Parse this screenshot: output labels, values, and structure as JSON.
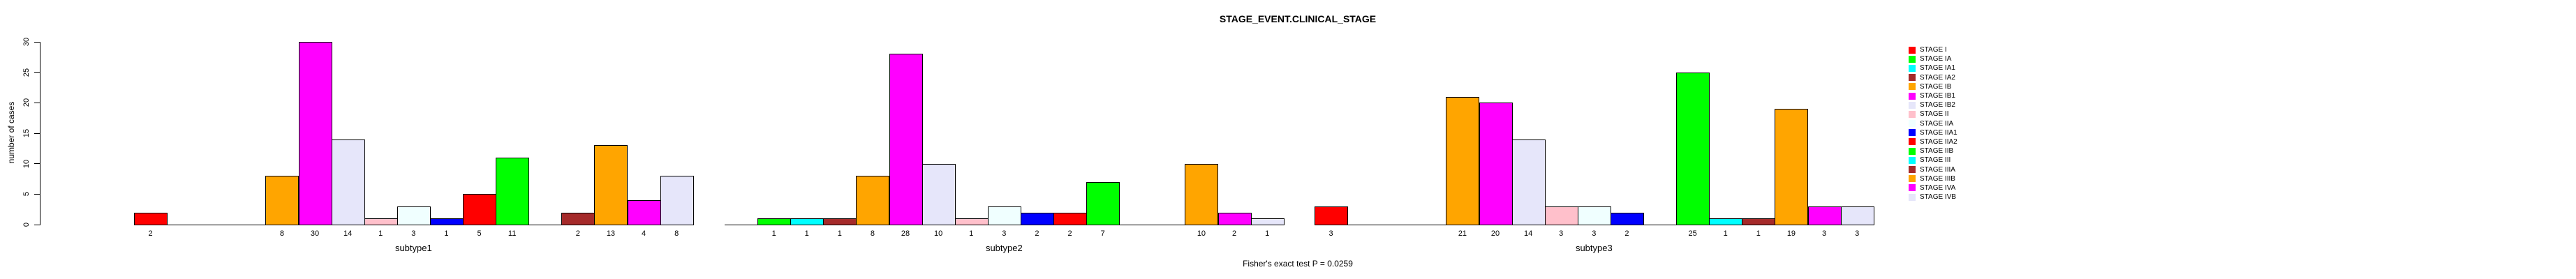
{
  "title": "STAGE_EVENT.CLINICAL_STAGE",
  "ylabel": "number of cases",
  "footer": "Fisher's exact test P = 0.0259",
  "chart_data": {
    "type": "bar",
    "title": "STAGE_EVENT.CLINICAL_STAGE",
    "xlabel": "",
    "ylabel": "number of cases",
    "ylim": [
      0,
      30
    ],
    "yticks": [
      0,
      5,
      10,
      15,
      20,
      25,
      30
    ],
    "grid": false,
    "legend_position": "right-of-plot",
    "annotation": "Fisher's exact test P = 0.0259",
    "bar_value_labels_shown_below_nonzero_bars": true,
    "categories": [
      "STAGE I",
      "STAGE IA",
      "STAGE IA1",
      "STAGE IA2",
      "STAGE IB",
      "STAGE IB1",
      "STAGE IB2",
      "STAGE II",
      "STAGE IIA",
      "STAGE IIA1",
      "STAGE IIA2",
      "STAGE IIB",
      "STAGE III",
      "STAGE IIIA",
      "STAGE IIIB",
      "STAGE IVA",
      "STAGE IVB"
    ],
    "colors": [
      "#FF0000",
      "#00FF00",
      "#00FFFF",
      "#A52A2A",
      "#FFA500",
      "#FF00FF",
      "#E6E6FA",
      "#FFC0CB",
      "#F0FFFF",
      "#0000FF",
      "#FF0000",
      "#00FF00",
      "#00FFFF",
      "#A52A2A",
      "#FFA500",
      "#FF00FF",
      "#E6E6FA"
    ],
    "groups": [
      "subtype1",
      "subtype2",
      "subtype3"
    ],
    "series": [
      {
        "name": "subtype1",
        "values": [
          2,
          0,
          0,
          0,
          8,
          30,
          14,
          1,
          3,
          1,
          5,
          11,
          0,
          2,
          13,
          4,
          8
        ]
      },
      {
        "name": "subtype2",
        "values": [
          0,
          1,
          1,
          1,
          8,
          28,
          10,
          1,
          3,
          2,
          2,
          7,
          0,
          0,
          10,
          2,
          1
        ]
      },
      {
        "name": "subtype3",
        "values": [
          3,
          0,
          0,
          0,
          21,
          20,
          14,
          3,
          3,
          2,
          0,
          25,
          1,
          1,
          19,
          3,
          3
        ]
      }
    ]
  },
  "legend": {
    "items": [
      {
        "label": "STAGE I",
        "color": "#FF0000"
      },
      {
        "label": "STAGE IA",
        "color": "#00FF00"
      },
      {
        "label": "STAGE IA1",
        "color": "#00FFFF"
      },
      {
        "label": "STAGE IA2",
        "color": "#A52A2A"
      },
      {
        "label": "STAGE IB",
        "color": "#FFA500"
      },
      {
        "label": "STAGE IB1",
        "color": "#FF00FF"
      },
      {
        "label": "STAGE IB2",
        "color": "#E6E6FA"
      },
      {
        "label": "STAGE II",
        "color": "#FFC0CB"
      },
      {
        "label": "STAGE IIA",
        "color": "#F0FFFF"
      },
      {
        "label": "STAGE IIA1",
        "color": "#0000FF"
      },
      {
        "label": "STAGE IIA2",
        "color": "#FF0000"
      },
      {
        "label": "STAGE IIB",
        "color": "#00FF00"
      },
      {
        "label": "STAGE III",
        "color": "#00FFFF"
      },
      {
        "label": "STAGE IIIA",
        "color": "#A52A2A"
      },
      {
        "label": "STAGE IIIB",
        "color": "#FFA500"
      },
      {
        "label": "STAGE IVA",
        "color": "#FF00FF"
      },
      {
        "label": "STAGE IVB",
        "color": "#E6E6FA"
      }
    ]
  }
}
